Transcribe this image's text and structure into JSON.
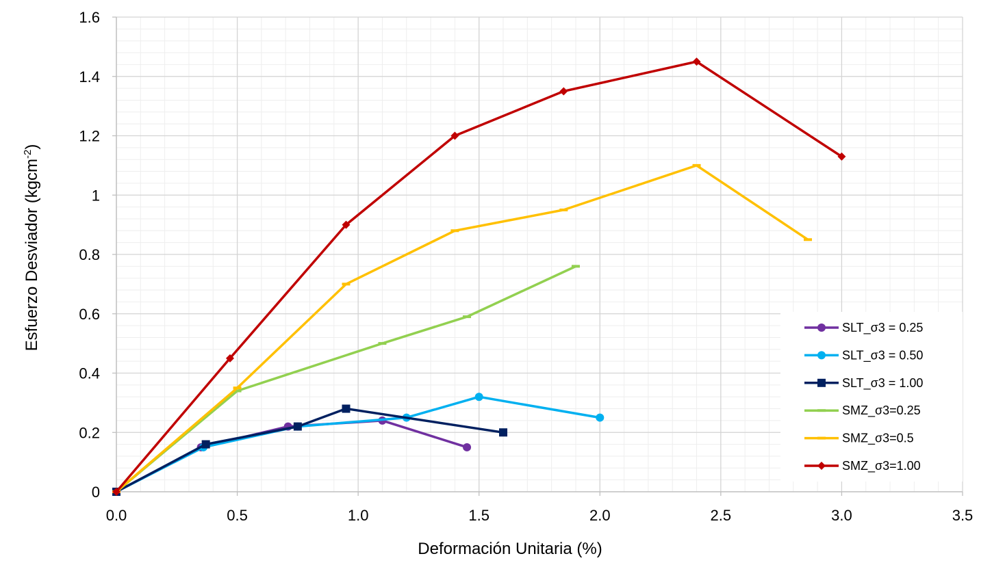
{
  "chart_data": {
    "type": "line",
    "title": "",
    "xlabel": "Deformación Unitaria (%)",
    "ylabel_main": "Esfuerzo Desviador (kgcm",
    "ylabel_sup": "-2",
    "ylabel_close": ")",
    "xlim": [
      0,
      3.5
    ],
    "ylim": [
      0,
      1.6
    ],
    "x_ticks": [
      "0.0",
      "0.5",
      "1.0",
      "1.5",
      "2.0",
      "2.5",
      "3.0",
      "3.5"
    ],
    "y_ticks": [
      "0",
      "0.2",
      "0.4",
      "0.6",
      "0.8",
      "1",
      "1.2",
      "1.4",
      "1.6"
    ],
    "grid": true,
    "legend_position": "bottom-right",
    "series": [
      {
        "name": "SLT_σ3 = 0.25",
        "color": "#7030a0",
        "marker": "circle",
        "x": [
          0,
          0.35,
          0.71,
          1.1,
          1.45
        ],
        "y": [
          0,
          0.15,
          0.22,
          0.24,
          0.15
        ]
      },
      {
        "name": "SLT_σ3 = 0.50",
        "color": "#00b0f0",
        "marker": "circle",
        "x": [
          0,
          0.36,
          0.75,
          1.2,
          1.5,
          2.0
        ],
        "y": [
          0,
          0.15,
          0.22,
          0.25,
          0.32,
          0.25
        ]
      },
      {
        "name": "SLT_σ3 = 1.00",
        "color": "#002060",
        "marker": "square",
        "x": [
          0,
          0.37,
          0.75,
          0.95,
          1.6
        ],
        "y": [
          0,
          0.16,
          0.22,
          0.28,
          0.2
        ]
      },
      {
        "name": "SMZ_σ3=0.25",
        "color": "#92d050",
        "marker": "dash",
        "x": [
          0,
          0.5,
          1.1,
          1.45,
          1.9
        ],
        "y": [
          0,
          0.34,
          0.5,
          0.59,
          0.76
        ]
      },
      {
        "name": "SMZ_σ3=0.5",
        "color": "#ffc000",
        "marker": "dash",
        "x": [
          0,
          0.5,
          0.95,
          1.4,
          1.85,
          2.4,
          2.86
        ],
        "y": [
          0,
          0.35,
          0.7,
          0.88,
          0.95,
          1.1,
          0.85
        ]
      },
      {
        "name": "SMZ_σ3=1.00",
        "color": "#c00000",
        "marker": "diamond",
        "x": [
          0,
          0.47,
          0.95,
          1.4,
          1.85,
          2.4,
          3.0
        ],
        "y": [
          0,
          0.45,
          0.9,
          1.2,
          1.35,
          1.45,
          1.13
        ]
      }
    ]
  }
}
